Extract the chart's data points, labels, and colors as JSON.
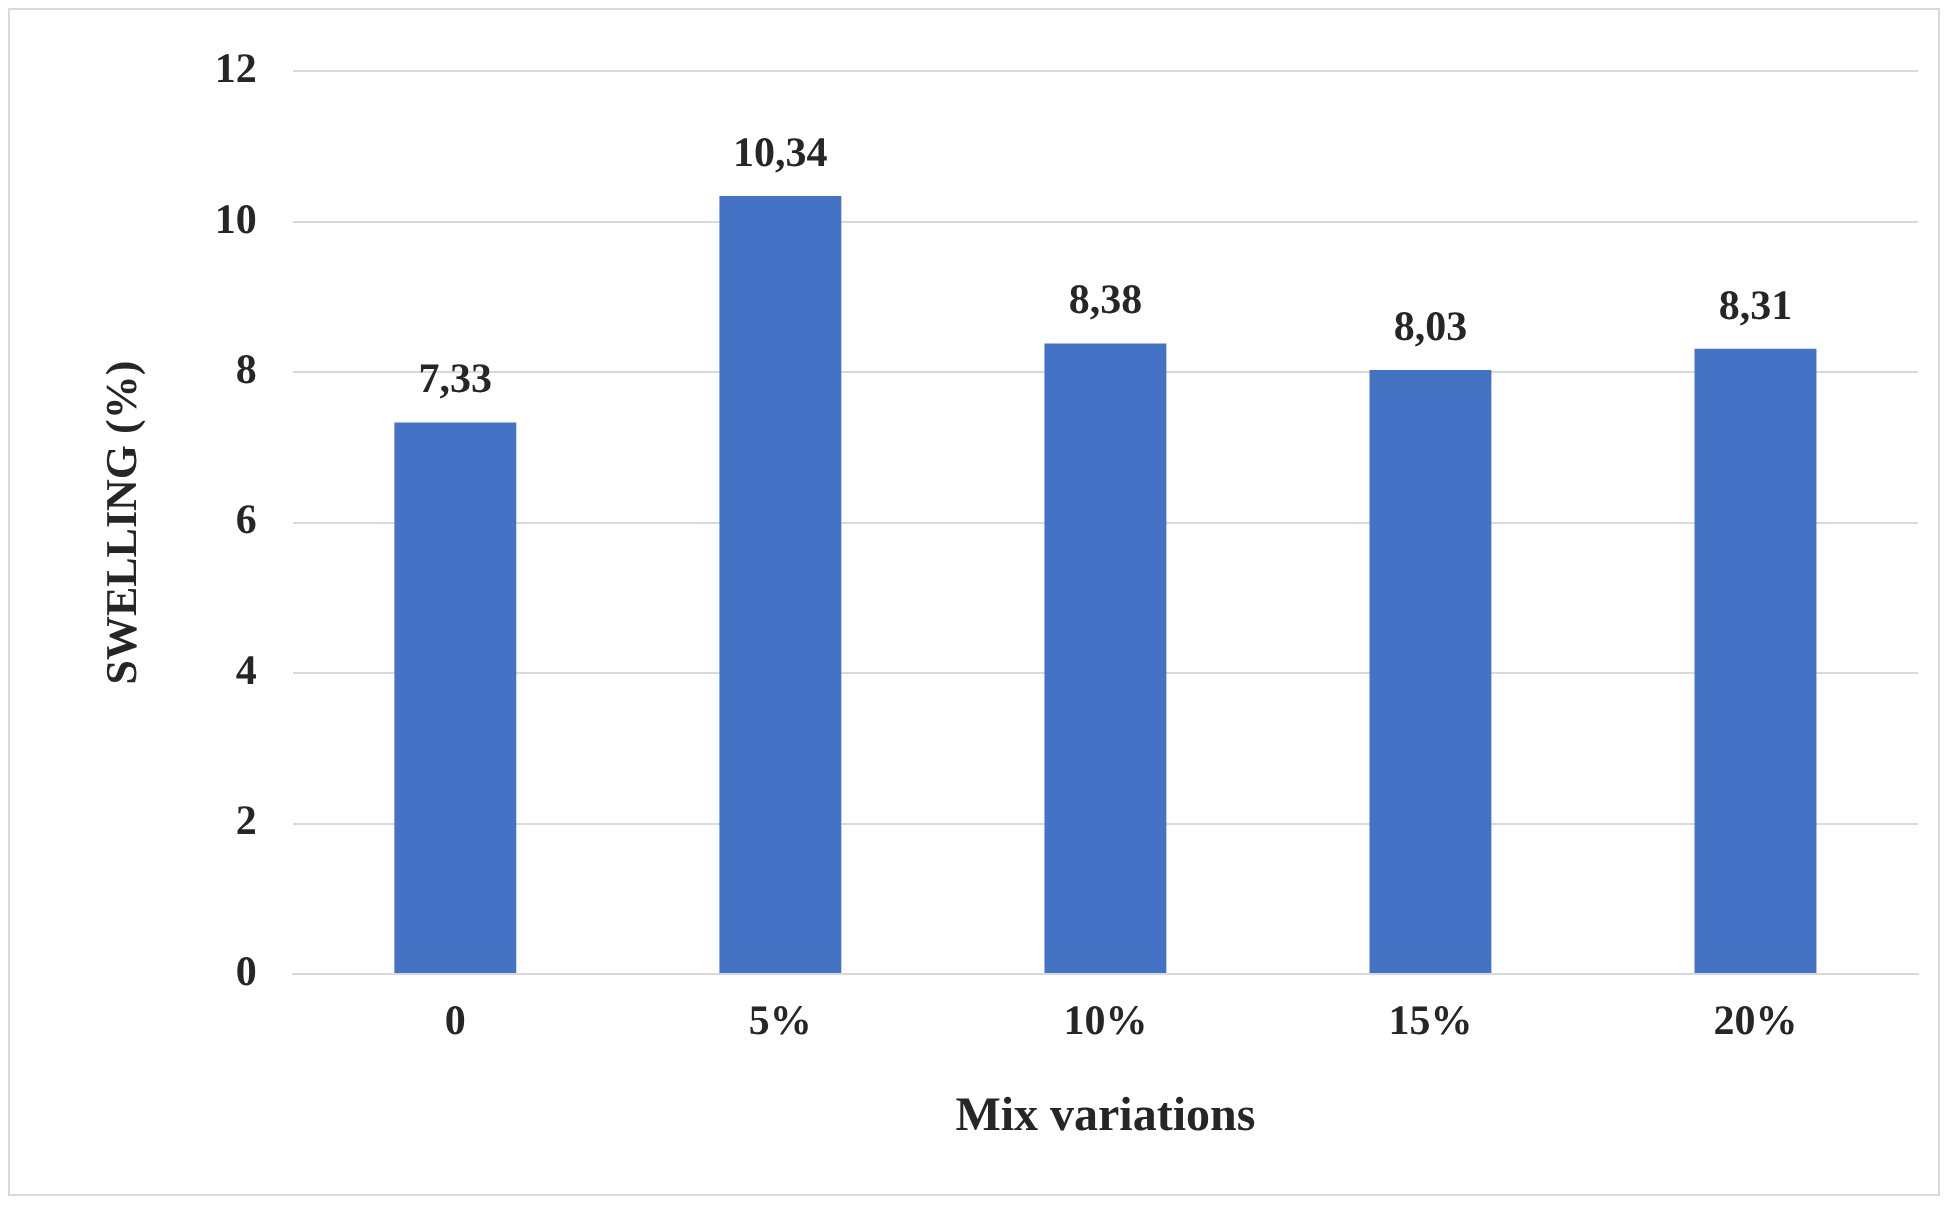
{
  "chart_data": {
    "type": "bar",
    "xlabel": "Mix variations",
    "ylabel": "SWELLING (%)",
    "categories": [
      "0",
      "5%",
      "10%",
      "15%",
      "20%"
    ],
    "series": [
      {
        "color": "#4472c4",
        "values": [
          7.33,
          10.34,
          8.38,
          8.03,
          8.31
        ],
        "value_labels": [
          "7,33",
          "10,34",
          "8,38",
          "8,03",
          "8,31"
        ]
      }
    ],
    "ylim": [
      0,
      12
    ],
    "yticks": [
      0,
      2,
      4,
      6,
      8,
      10,
      12
    ],
    "grid": "y",
    "legend": false
  }
}
